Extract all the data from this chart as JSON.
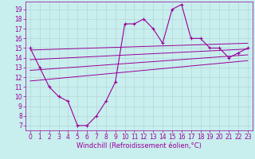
{
  "xlabel": "Windchill (Refroidissement éolien,°C)",
  "bg_color": "#c8eeee",
  "grid_color": "#b0d0d0",
  "line_color": "#990099",
  "x_ticks": [
    0,
    1,
    2,
    3,
    4,
    5,
    6,
    7,
    8,
    9,
    10,
    11,
    12,
    13,
    14,
    15,
    16,
    17,
    18,
    19,
    20,
    21,
    22,
    23
  ],
  "y_ticks": [
    7,
    8,
    9,
    10,
    11,
    12,
    13,
    14,
    15,
    16,
    17,
    18,
    19
  ],
  "ylim": [
    6.5,
    19.8
  ],
  "xlim": [
    -0.5,
    23.5
  ],
  "main_line": {
    "x": [
      0,
      1,
      2,
      3,
      4,
      5,
      6,
      7,
      8,
      9,
      10,
      11,
      12,
      13,
      14,
      15,
      16,
      17,
      18,
      19,
      20,
      21,
      22,
      23
    ],
    "y": [
      15,
      13,
      11,
      10,
      9.5,
      7,
      7,
      8,
      9.5,
      11.5,
      17.5,
      17.5,
      18,
      17,
      15.5,
      19,
      19.5,
      16,
      16,
      15,
      15,
      14,
      14.5,
      15
    ]
  },
  "band_lines": [
    {
      "x": [
        0,
        23
      ],
      "y": [
        14.8,
        15.5
      ]
    },
    {
      "x": [
        0,
        23
      ],
      "y": [
        13.8,
        14.9
      ]
    },
    {
      "x": [
        0,
        23
      ],
      "y": [
        12.7,
        14.3
      ]
    },
    {
      "x": [
        0,
        23
      ],
      "y": [
        11.6,
        13.7
      ]
    }
  ],
  "font_size_label": 6,
  "font_size_tick": 5.5,
  "marker": "+"
}
